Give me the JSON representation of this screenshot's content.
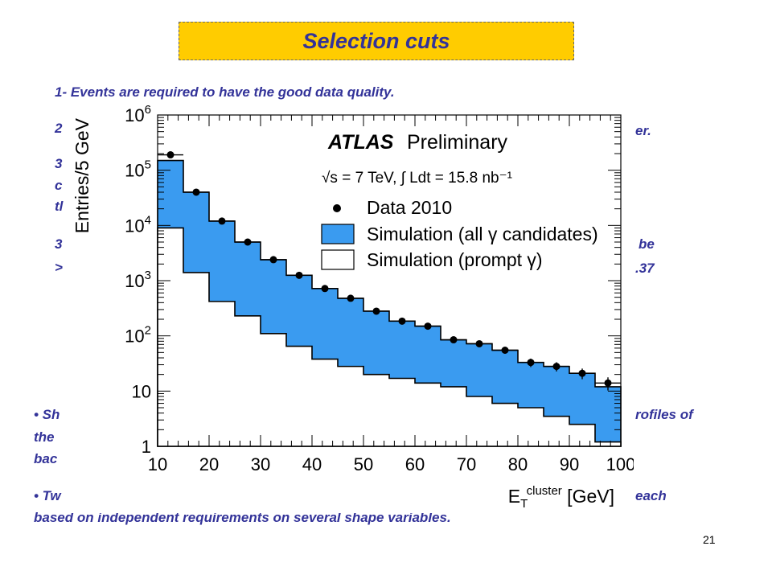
{
  "slide": {
    "title": "Selection cuts",
    "number": "21",
    "lines": [
      "1- Events are required to have the good data quality.",
      "2",
      "er.",
      "3",
      "c",
      "tl",
      "3",
      "be",
      ">",
      ".37",
      "• Sh",
      "rofiles of",
      "the",
      "bac",
      "• Tw",
      "each",
      "based on independent requirements on several shape variables."
    ]
  },
  "chart_data": {
    "type": "bar",
    "y_scale": "log",
    "xlim": [
      10,
      100
    ],
    "ylim": [
      1,
      1000000
    ],
    "xlabel": "E_T^cluster [GeV]",
    "ylabel": "Entries/5 GeV",
    "x_ticks": [
      10,
      20,
      30,
      40,
      50,
      60,
      70,
      80,
      90,
      100
    ],
    "y_ticks": [
      "1",
      "10",
      "10^2",
      "10^3",
      "10^4",
      "10^5",
      "10^6"
    ],
    "bin_edges": [
      10,
      15,
      20,
      25,
      30,
      35,
      40,
      45,
      50,
      55,
      60,
      65,
      70,
      75,
      80,
      85,
      90,
      95,
      100
    ],
    "experiment_label": "ATLAS",
    "experiment_sublabel": "Preliminary",
    "energy_label": "√s = 7 TeV, ∫ Ldt = 15.8 nb⁻¹",
    "legend": {
      "position": "top-right",
      "entries": [
        "Data 2010",
        "Simulation (all γ candidates)",
        "Simulation (prompt γ)"
      ]
    },
    "colors": {
      "all_candidates_fill": "#3a9bf0",
      "prompt_fill": "#ffffff",
      "data_marker": "#000000"
    },
    "series": [
      {
        "name": "Data 2010",
        "kind": "points",
        "x": [
          12.5,
          17.5,
          22.5,
          27.5,
          32.5,
          37.5,
          42.5,
          47.5,
          52.5,
          57.5,
          62.5,
          67.5,
          72.5,
          77.5,
          82.5,
          87.5,
          92.5,
          97.5
        ],
        "values": [
          190000,
          40000,
          12000,
          5000,
          2400,
          1250,
          720,
          480,
          280,
          185,
          150,
          85,
          72,
          55,
          33,
          28,
          21,
          14
        ]
      },
      {
        "name": "Simulation (all γ candidates)",
        "kind": "hist",
        "values": [
          150000,
          40000,
          12000,
          5000,
          2400,
          1250,
          720,
          480,
          280,
          185,
          150,
          85,
          72,
          55,
          33,
          28,
          21,
          12
        ]
      },
      {
        "name": "Simulation (prompt γ)",
        "kind": "hist",
        "values": [
          9000,
          1400,
          420,
          230,
          110,
          65,
          38,
          28,
          20,
          17,
          14,
          12,
          8,
          6,
          5,
          3.5,
          2.5,
          1.2
        ]
      }
    ]
  }
}
